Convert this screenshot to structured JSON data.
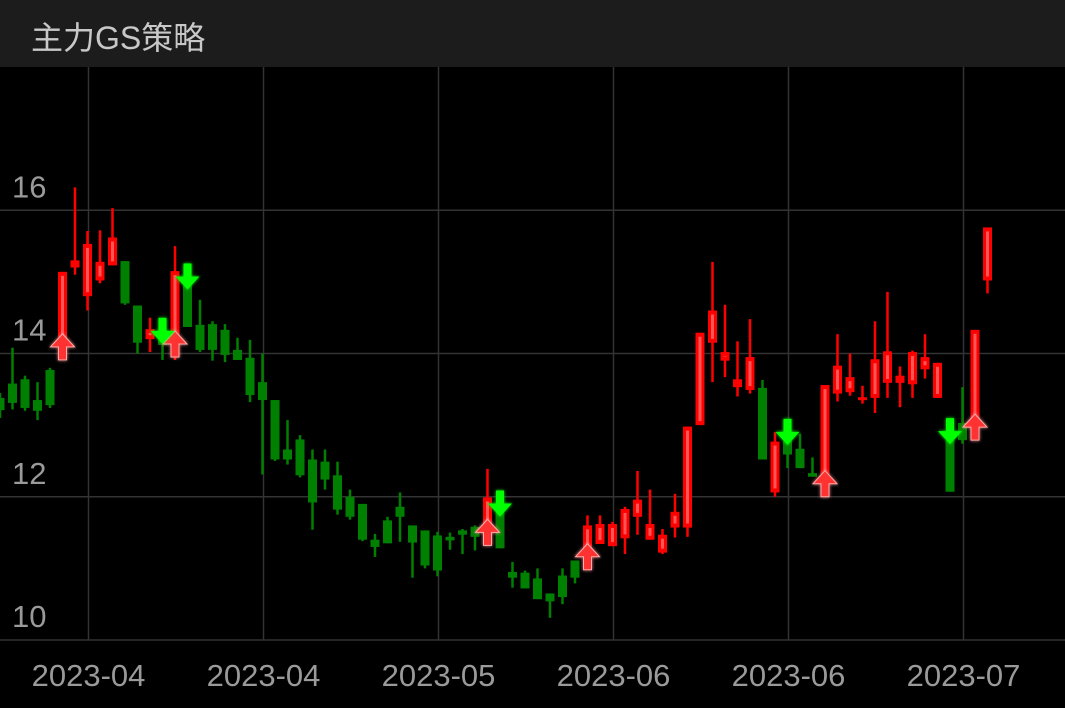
{
  "header": {
    "title": "主力GS策略"
  },
  "chart_data": {
    "type": "candlestick",
    "title": "",
    "ylim": [
      10,
      18
    ],
    "y_ticks": [
      10,
      12,
      14,
      16
    ],
    "grid": true,
    "x_ticks": [
      {
        "index": 7,
        "label": "2023-04"
      },
      {
        "index": 21,
        "label": "2023-04"
      },
      {
        "index": 35,
        "label": "2023-05"
      },
      {
        "index": 49,
        "label": "2023-06"
      },
      {
        "index": 63,
        "label": "2023-06"
      },
      {
        "index": 77,
        "label": "2023-07"
      }
    ],
    "colors": {
      "up": "#ff0000",
      "down": "#008000",
      "buy_signal": "#ff3030",
      "sell_signal": "#00ff00",
      "grid": "#333333"
    },
    "ohlc": [
      [
        13.38,
        13.45,
        13.1,
        13.21
      ],
      [
        13.58,
        14.08,
        13.22,
        13.31
      ],
      [
        13.64,
        13.69,
        13.2,
        13.24
      ],
      [
        13.35,
        13.6,
        13.07,
        13.2
      ],
      [
        13.77,
        13.8,
        13.24,
        13.28
      ],
      [
        14.19,
        15.14,
        14.1,
        15.14
      ],
      [
        15.2,
        16.32,
        15.1,
        15.3
      ],
      [
        14.8,
        15.71,
        14.6,
        15.53
      ],
      [
        15.02,
        15.72,
        14.98,
        15.28
      ],
      [
        15.23,
        16.03,
        15.23,
        15.62
      ],
      [
        15.29,
        15.29,
        14.68,
        14.7
      ],
      [
        14.67,
        14.67,
        14.0,
        14.15
      ],
      [
        14.2,
        14.5,
        14.02,
        14.34
      ],
      [
        14.19,
        14.2,
        13.91,
        14.12
      ],
      [
        14.23,
        15.5,
        13.91,
        15.15
      ],
      [
        14.95,
        14.95,
        14.37,
        14.37
      ],
      [
        14.4,
        14.75,
        14.02,
        14.05
      ],
      [
        14.41,
        14.45,
        13.9,
        14.05
      ],
      [
        14.33,
        14.41,
        13.88,
        13.98
      ],
      [
        14.05,
        14.22,
        13.91,
        13.91
      ],
      [
        13.94,
        14.19,
        13.32,
        13.42
      ],
      [
        13.6,
        14.0,
        12.31,
        13.35
      ],
      [
        13.35,
        13.35,
        12.5,
        12.52
      ],
      [
        12.66,
        13.07,
        12.45,
        12.52
      ],
      [
        12.8,
        12.86,
        12.27,
        12.3
      ],
      [
        12.52,
        12.66,
        11.54,
        11.92
      ],
      [
        12.49,
        12.66,
        12.1,
        12.24
      ],
      [
        12.3,
        12.49,
        11.75,
        11.82
      ],
      [
        12.0,
        12.1,
        11.68,
        11.72
      ],
      [
        11.9,
        11.9,
        11.38,
        11.4
      ],
      [
        11.4,
        11.48,
        11.16,
        11.3
      ],
      [
        11.67,
        11.72,
        11.35,
        11.35
      ],
      [
        11.86,
        12.06,
        11.37,
        11.72
      ],
      [
        11.6,
        11.6,
        10.87,
        11.36
      ],
      [
        11.53,
        11.53,
        11.0,
        11.04
      ],
      [
        11.46,
        11.51,
        10.89,
        10.97
      ],
      [
        11.44,
        11.5,
        11.26,
        11.39
      ],
      [
        11.53,
        11.55,
        11.2,
        11.47
      ],
      [
        11.58,
        11.6,
        11.25,
        11.44
      ],
      [
        11.6,
        12.39,
        11.33,
        11.99
      ],
      [
        11.78,
        11.9,
        11.28,
        11.28
      ],
      [
        10.95,
        11.09,
        10.73,
        10.87
      ],
      [
        10.94,
        10.97,
        10.72,
        10.72
      ],
      [
        10.86,
        11.0,
        10.57,
        10.57
      ],
      [
        10.65,
        10.65,
        10.31,
        10.54
      ],
      [
        10.9,
        11.0,
        10.5,
        10.6
      ],
      [
        11.11,
        11.11,
        10.79,
        10.87
      ],
      [
        11.26,
        11.74,
        11.2,
        11.6
      ],
      [
        11.34,
        11.74,
        11.34,
        11.62
      ],
      [
        11.31,
        11.65,
        11.31,
        11.62
      ],
      [
        11.42,
        11.86,
        11.2,
        11.83
      ],
      [
        11.72,
        12.36,
        11.47,
        11.96
      ],
      [
        11.4,
        12.1,
        11.4,
        11.62
      ],
      [
        11.22,
        11.55,
        11.2,
        11.47
      ],
      [
        11.57,
        12.04,
        11.43,
        11.79
      ],
      [
        11.57,
        12.98,
        11.44,
        12.98
      ],
      [
        13.0,
        14.29,
        13.0,
        14.29
      ],
      [
        14.15,
        15.28,
        13.6,
        14.6
      ],
      [
        13.9,
        14.68,
        13.67,
        14.02
      ],
      [
        13.53,
        14.17,
        13.4,
        13.64
      ],
      [
        13.49,
        14.48,
        13.44,
        13.95
      ],
      [
        13.52,
        13.63,
        12.52,
        12.52
      ],
      [
        12.06,
        12.9,
        12.0,
        12.77
      ],
      [
        12.78,
        12.78,
        12.4,
        12.59
      ],
      [
        12.67,
        12.88,
        12.4,
        12.4
      ],
      [
        12.33,
        12.55,
        12.28,
        12.28
      ],
      [
        12.28,
        13.56,
        12.28,
        13.56
      ],
      [
        13.44,
        14.27,
        13.33,
        13.83
      ],
      [
        13.46,
        14.0,
        13.41,
        13.67
      ],
      [
        13.35,
        13.55,
        13.3,
        13.39
      ],
      [
        13.38,
        14.45,
        13.17,
        13.92
      ],
      [
        13.59,
        14.86,
        13.38,
        14.03
      ],
      [
        13.59,
        13.82,
        13.25,
        13.69
      ],
      [
        13.57,
        14.04,
        13.38,
        14.02
      ],
      [
        13.78,
        14.27,
        13.65,
        13.95
      ],
      [
        13.38,
        13.87,
        13.38,
        13.87
      ],
      [
        12.79,
        12.79,
        12.07,
        12.07
      ],
      [
        13.03,
        13.53,
        12.74,
        12.79
      ],
      [
        13.07,
        14.33,
        13.07,
        14.33
      ],
      [
        15.02,
        15.76,
        14.84,
        15.76
      ]
    ],
    "buy_signals": [
      5,
      14,
      39,
      47,
      66,
      78
    ],
    "sell_signals": [
      13,
      15,
      40,
      63,
      76
    ]
  }
}
